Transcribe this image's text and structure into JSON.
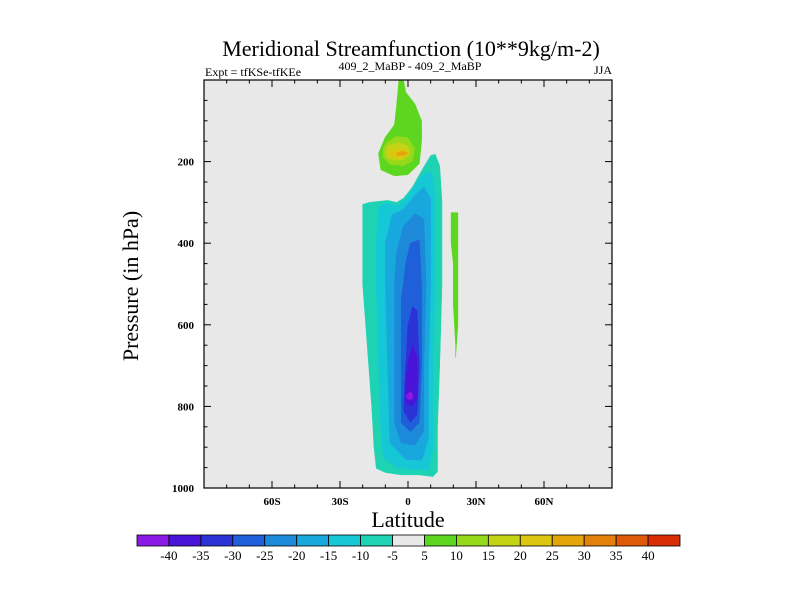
{
  "chart_data": {
    "type": "contour",
    "title": "Meridional Streamfunction (10**9kg/m-2)",
    "left_subtitle": "Expt = tfKSe-tfKEe",
    "center_subtitle": "409_2_MaBP - 409_2_MaBP",
    "right_subtitle": "JJA",
    "xlabel": "Latitude",
    "ylabel": "Pressure (in hPa)",
    "xlim": [
      -90,
      90
    ],
    "ylim": [
      1000,
      0
    ],
    "x_ticks": [
      {
        "value": -60,
        "label": "60S"
      },
      {
        "value": -30,
        "label": "30S"
      },
      {
        "value": 0,
        "label": "0"
      },
      {
        "value": 30,
        "label": "30N"
      },
      {
        "value": 60,
        "label": "60N"
      }
    ],
    "y_ticks": [
      {
        "value": 200,
        "label": "200"
      },
      {
        "value": 400,
        "label": "400"
      },
      {
        "value": 600,
        "label": "600"
      },
      {
        "value": 800,
        "label": "800"
      },
      {
        "value": 1000,
        "label": "1000"
      }
    ],
    "background_color": "#e8e8e8",
    "colorbar": {
      "levels": [
        "-40",
        "-35",
        "-30",
        "-25",
        "-20",
        "-15",
        "-10",
        "-5",
        "5",
        "10",
        "15",
        "20",
        "25",
        "30",
        "35",
        "40"
      ],
      "colors": [
        "#8b1ae6",
        "#4a14d8",
        "#2b33d6",
        "#1f5fd9",
        "#1d8ad9",
        "#19a8de",
        "#16c8d6",
        "#1ed3b4",
        "#e8e8e8",
        "#5cd61e",
        "#96d81a",
        "#c4d316",
        "#dcc60f",
        "#e4a50c",
        "#e2800a",
        "#de5a08",
        "#d92d06"
      ]
    },
    "regions": [
      {
        "name": "negative-outer",
        "level": "-5",
        "color": "#1ed3b4",
        "points": [
          [
            -20,
            305
          ],
          [
            -17,
            300
          ],
          [
            -9,
            295
          ],
          [
            -5,
            300
          ],
          [
            -2,
            290
          ],
          [
            2,
            262
          ],
          [
            6,
            222
          ],
          [
            10,
            185
          ],
          [
            12,
            182
          ],
          [
            14,
            210
          ],
          [
            15,
            300
          ],
          [
            15,
            500
          ],
          [
            14,
            700
          ],
          [
            13,
            850
          ],
          [
            13,
            960
          ],
          [
            11,
            972
          ],
          [
            5,
            968
          ],
          [
            -3,
            968
          ],
          [
            -10,
            962
          ],
          [
            -14,
            952
          ],
          [
            -15,
            900
          ],
          [
            -16,
            800
          ],
          [
            -18,
            650
          ],
          [
            -20,
            500
          ],
          [
            -20,
            400
          ]
        ]
      },
      {
        "name": "negative-10",
        "level": "-10",
        "color": "#16c8d6",
        "points": [
          [
            -13,
            310
          ],
          [
            -9,
            302
          ],
          [
            -4,
            308
          ],
          [
            0,
            285
          ],
          [
            4,
            250
          ],
          [
            8,
            225
          ],
          [
            11,
            232
          ],
          [
            12,
            300
          ],
          [
            12,
            500
          ],
          [
            11,
            700
          ],
          [
            11,
            900
          ],
          [
            9,
            955
          ],
          [
            3,
            955
          ],
          [
            -5,
            950
          ],
          [
            -11,
            925
          ],
          [
            -12,
            850
          ],
          [
            -13,
            700
          ],
          [
            -14,
            500
          ],
          [
            -14,
            400
          ]
        ]
      },
      {
        "name": "negative-15",
        "level": "-15",
        "color": "#19a8de",
        "points": [
          [
            -7,
            330
          ],
          [
            -2,
            318
          ],
          [
            3,
            282
          ],
          [
            7,
            262
          ],
          [
            10,
            290
          ],
          [
            10,
            500
          ],
          [
            9,
            700
          ],
          [
            9,
            880
          ],
          [
            6,
            932
          ],
          [
            -1,
            930
          ],
          [
            -8,
            890
          ],
          [
            -9,
            700
          ],
          [
            -10,
            500
          ],
          [
            -10,
            400
          ]
        ]
      },
      {
        "name": "negative-20",
        "level": "-20",
        "color": "#1d8ad9",
        "points": [
          [
            -2,
            358
          ],
          [
            3,
            328
          ],
          [
            7,
            340
          ],
          [
            8,
            500
          ],
          [
            7,
            700
          ],
          [
            7,
            860
          ],
          [
            3,
            895
          ],
          [
            -3,
            890
          ],
          [
            -6,
            840
          ],
          [
            -6,
            700
          ],
          [
            -6,
            500
          ],
          [
            -5,
            420
          ]
        ]
      },
      {
        "name": "negative-25",
        "level": "-25",
        "color": "#1f5fd9",
        "points": [
          [
            1,
            400
          ],
          [
            5,
            392
          ],
          [
            6,
            500
          ],
          [
            6,
            700
          ],
          [
            5,
            840
          ],
          [
            1,
            862
          ],
          [
            -3,
            840
          ],
          [
            -3,
            700
          ],
          [
            -3,
            540
          ],
          [
            -1,
            450
          ]
        ]
      },
      {
        "name": "negative-30",
        "level": "-30",
        "color": "#2b33d6",
        "points": [
          [
            2,
            555
          ],
          [
            4,
            565
          ],
          [
            5,
            700
          ],
          [
            4,
            820
          ],
          [
            1,
            840
          ],
          [
            -2,
            810
          ],
          [
            -1,
            700
          ],
          [
            0,
            600
          ]
        ]
      },
      {
        "name": "negative-35",
        "level": "-35",
        "color": "#4a14d8",
        "points": [
          [
            2,
            650
          ],
          [
            4,
            680
          ],
          [
            4,
            780
          ],
          [
            2,
            800
          ],
          [
            -1,
            790
          ],
          [
            -1,
            740
          ],
          [
            0,
            690
          ]
        ]
      },
      {
        "name": "negative-40",
        "level": "-40",
        "color": "#8b1ae6",
        "points": [
          [
            1,
            763
          ],
          [
            2,
            770
          ],
          [
            2,
            782
          ],
          [
            0,
            782
          ],
          [
            -1,
            775
          ]
        ]
      },
      {
        "name": "positive-outer",
        "level": "5",
        "color": "#5cd61e",
        "points": [
          [
            -4,
            0
          ],
          [
            -2,
            0
          ],
          [
            -1,
            30
          ],
          [
            3,
            58
          ],
          [
            6,
            100
          ],
          [
            6,
            150
          ],
          [
            5,
            205
          ],
          [
            0,
            232
          ],
          [
            -6,
            235
          ],
          [
            -12,
            220
          ],
          [
            -13,
            180
          ],
          [
            -10,
            140
          ],
          [
            -6,
            110
          ],
          [
            -5,
            60
          ]
        ]
      },
      {
        "name": "positive-10",
        "level": "10",
        "color": "#96d81a",
        "points": [
          [
            -10,
            155
          ],
          [
            -5,
            138
          ],
          [
            0,
            142
          ],
          [
            3,
            168
          ],
          [
            2,
            198
          ],
          [
            -2,
            210
          ],
          [
            -8,
            207
          ],
          [
            -11,
            190
          ],
          [
            -11,
            170
          ]
        ]
      },
      {
        "name": "positive-15",
        "level": "15",
        "color": "#c4d316",
        "points": [
          [
            -9,
            160
          ],
          [
            -4,
            153
          ],
          [
            0,
            162
          ],
          [
            1,
            180
          ],
          [
            -2,
            195
          ],
          [
            -6,
            197
          ],
          [
            -9,
            192
          ],
          [
            -10,
            178
          ]
        ]
      },
      {
        "name": "positive-20",
        "level": "20",
        "color": "#dcc60f",
        "points": [
          [
            -7,
            172
          ],
          [
            -3,
            168
          ],
          [
            0,
            175
          ],
          [
            -1,
            188
          ],
          [
            -4,
            192
          ],
          [
            -7,
            188
          ],
          [
            -8,
            180
          ]
        ]
      },
      {
        "name": "positive-25",
        "level": "25",
        "color": "#e4a50c",
        "points": [
          [
            -5,
            178
          ],
          [
            -2,
            175
          ],
          [
            0,
            180
          ],
          [
            -2,
            185
          ],
          [
            -5,
            184
          ]
        ]
      },
      {
        "name": "positive-strip",
        "level": "5",
        "color": "#5cd61e",
        "points": [
          [
            19,
            325
          ],
          [
            22,
            325
          ],
          [
            22,
            400
          ],
          [
            22,
            500
          ],
          [
            22,
            600
          ],
          [
            21,
            680
          ],
          [
            21,
            650
          ],
          [
            20,
            550
          ],
          [
            20,
            450
          ],
          [
            19,
            400
          ]
        ]
      }
    ]
  }
}
